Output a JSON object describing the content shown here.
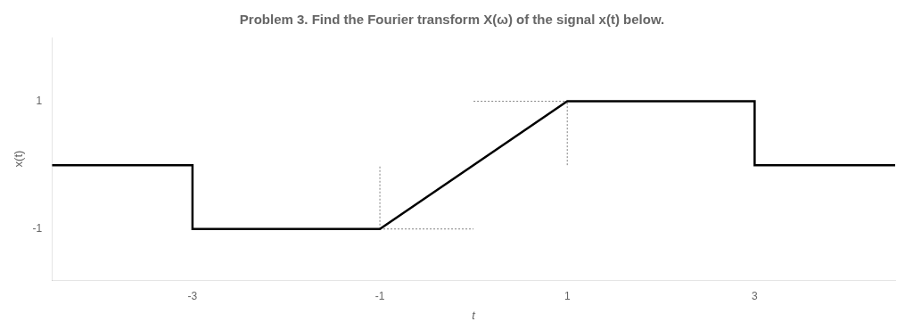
{
  "chart_data": {
    "type": "line",
    "title": "Problem 3. Find the Fourier transform X(ω) of the signal x(t) below.",
    "x_label": "t",
    "y_label": "x(t)",
    "xlim": [
      -4.5,
      4.5
    ],
    "ylim": [
      -1.8,
      2.0
    ],
    "xticks": [
      -3,
      -1,
      1,
      3
    ],
    "yticks": [
      -1,
      1
    ],
    "grid": false,
    "series": [
      {
        "color": "#000000",
        "line_style": "solid",
        "x": [
          -4.5,
          -3,
          -3,
          -1,
          1,
          3,
          3,
          4.5
        ],
        "values": [
          0,
          0,
          -1,
          -1,
          1,
          1,
          0,
          0
        ]
      },
      {
        "color": "#808080",
        "line_style": "dotted",
        "x": [
          -1,
          0
        ],
        "values": [
          -1,
          -1
        ]
      },
      {
        "color": "#808080",
        "line_style": "dotted",
        "x": [
          0,
          1
        ],
        "values": [
          1,
          1
        ]
      },
      {
        "color": "#808080",
        "line_style": "dotted",
        "x": [
          -1,
          -1
        ],
        "values": [
          -1,
          0
        ]
      },
      {
        "color": "#808080",
        "line_style": "dotted",
        "x": [
          1,
          1
        ],
        "values": [
          0,
          1
        ]
      }
    ]
  }
}
